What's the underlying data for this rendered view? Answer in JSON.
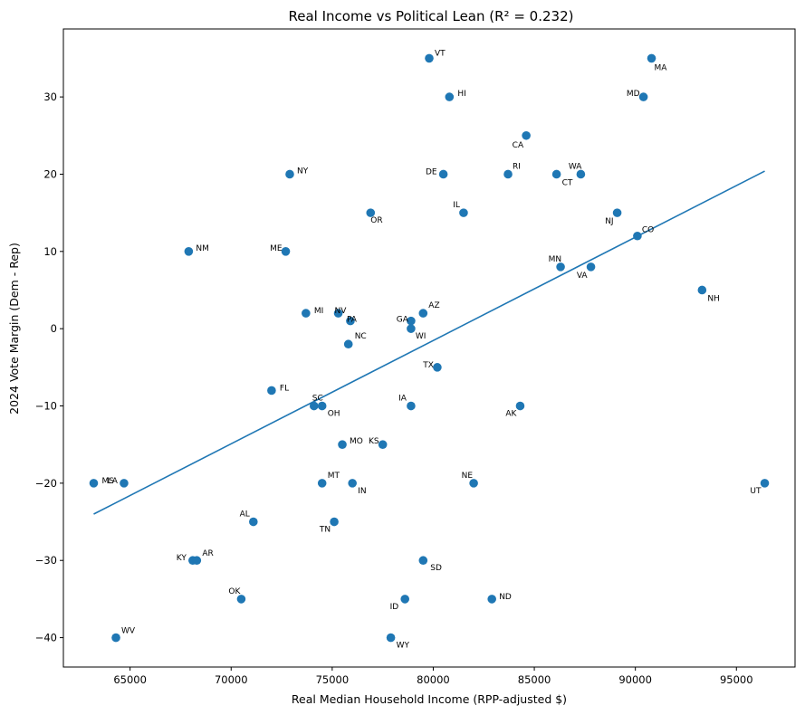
{
  "chart_data": {
    "type": "scatter",
    "title": "Real Income vs Political Lean (R² = 0.232)",
    "xlabel": "Real Median Household Income (RPP-adjusted $)",
    "ylabel": "2024 Vote Margin (Dem - Rep)",
    "xlim": [
      61700,
      97900
    ],
    "ylim": [
      -43.8,
      38.8
    ],
    "xticks": [
      65000,
      70000,
      75000,
      80000,
      85000,
      90000,
      95000
    ],
    "yticks": [
      -40,
      -30,
      -20,
      -10,
      0,
      10,
      20,
      30
    ],
    "marker_color": "#1f77b4",
    "trendline": {
      "x": [
        63200,
        96400
      ],
      "y": [
        -24.0,
        20.4
      ],
      "color": "#1f77b4"
    },
    "points": [
      {
        "label": "VT",
        "x": 79800,
        "y": 35
      },
      {
        "label": "MA",
        "x": 90800,
        "y": 35
      },
      {
        "label": "HI",
        "x": 80800,
        "y": 30
      },
      {
        "label": "MD",
        "x": 90400,
        "y": 30
      },
      {
        "label": "CA",
        "x": 84600,
        "y": 25
      },
      {
        "label": "NY",
        "x": 72900,
        "y": 20
      },
      {
        "label": "DE",
        "x": 80500,
        "y": 20
      },
      {
        "label": "RI",
        "x": 83700,
        "y": 20
      },
      {
        "label": "WA",
        "x": 87300,
        "y": 20
      },
      {
        "label": "CT",
        "x": 86100,
        "y": 20
      },
      {
        "label": "OR",
        "x": 76900,
        "y": 15
      },
      {
        "label": "IL",
        "x": 81500,
        "y": 15
      },
      {
        "label": "NJ",
        "x": 89100,
        "y": 15
      },
      {
        "label": "CO",
        "x": 90100,
        "y": 12
      },
      {
        "label": "NM",
        "x": 67900,
        "y": 10
      },
      {
        "label": "ME",
        "x": 72700,
        "y": 10
      },
      {
        "label": "MN",
        "x": 86300,
        "y": 8
      },
      {
        "label": "VA",
        "x": 87800,
        "y": 8
      },
      {
        "label": "NH",
        "x": 93300,
        "y": 5
      },
      {
        "label": "MI",
        "x": 73700,
        "y": 2
      },
      {
        "label": "NV",
        "x": 75300,
        "y": 2
      },
      {
        "label": "PA",
        "x": 75900,
        "y": 1
      },
      {
        "label": "AZ",
        "x": 79500,
        "y": 2
      },
      {
        "label": "GA",
        "x": 78900,
        "y": 1
      },
      {
        "label": "WI",
        "x": 78900,
        "y": 0
      },
      {
        "label": "NC",
        "x": 75800,
        "y": -2
      },
      {
        "label": "TX",
        "x": 80200,
        "y": -5
      },
      {
        "label": "FL",
        "x": 72000,
        "y": -8
      },
      {
        "label": "SC",
        "x": 74100,
        "y": -10
      },
      {
        "label": "OH",
        "x": 74500,
        "y": -10
      },
      {
        "label": "IA",
        "x": 78900,
        "y": -10
      },
      {
        "label": "AK",
        "x": 84300,
        "y": -10
      },
      {
        "label": "MO",
        "x": 75500,
        "y": -15
      },
      {
        "label": "KS",
        "x": 77500,
        "y": -15
      },
      {
        "label": "MS",
        "x": 63200,
        "y": -20
      },
      {
        "label": "LA",
        "x": 64700,
        "y": -20
      },
      {
        "label": "MT",
        "x": 74500,
        "y": -20
      },
      {
        "label": "IN",
        "x": 76000,
        "y": -20
      },
      {
        "label": "NE",
        "x": 82000,
        "y": -20
      },
      {
        "label": "UT",
        "x": 96400,
        "y": -20
      },
      {
        "label": "AL",
        "x": 71100,
        "y": -25
      },
      {
        "label": "TN",
        "x": 75100,
        "y": -25
      },
      {
        "label": "KY",
        "x": 68100,
        "y": -30
      },
      {
        "label": "AR",
        "x": 68300,
        "y": -30
      },
      {
        "label": "SD",
        "x": 79500,
        "y": -30
      },
      {
        "label": "OK",
        "x": 70500,
        "y": -35
      },
      {
        "label": "ID",
        "x": 78600,
        "y": -35
      },
      {
        "label": "ND",
        "x": 82900,
        "y": -35
      },
      {
        "label": "WV",
        "x": 64300,
        "y": -40
      },
      {
        "label": "WY",
        "x": 77900,
        "y": -40
      }
    ]
  }
}
